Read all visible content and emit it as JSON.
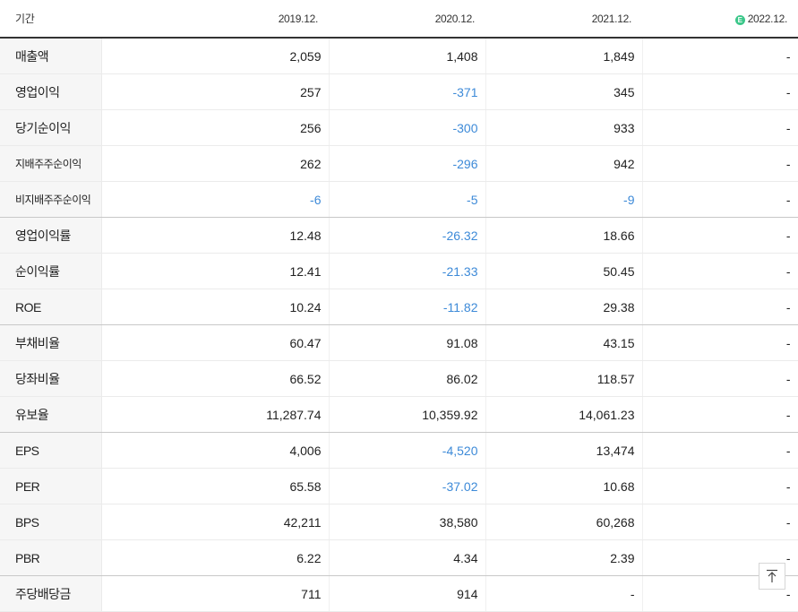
{
  "header": {
    "period_label": "기간",
    "columns": [
      "2019.12.",
      "2020.12.",
      "2021.12.",
      "2022.12."
    ],
    "estimate_icon": "E"
  },
  "rows": [
    {
      "label": "매출액",
      "values": [
        "2,059",
        "1,408",
        "1,849",
        "-"
      ]
    },
    {
      "label": "영업이익",
      "values": [
        "257",
        "-371",
        "345",
        "-"
      ]
    },
    {
      "label": "당기순이익",
      "values": [
        "256",
        "-300",
        "933",
        "-"
      ]
    },
    {
      "label": "지배주주순이익",
      "values": [
        "262",
        "-296",
        "942",
        "-"
      ]
    },
    {
      "label": "비지배주주순이익",
      "values": [
        "-6",
        "-5",
        "-9",
        "-"
      ]
    },
    {
      "label": "영업이익률",
      "values": [
        "12.48",
        "-26.32",
        "18.66",
        "-"
      ]
    },
    {
      "label": "순이익률",
      "values": [
        "12.41",
        "-21.33",
        "50.45",
        "-"
      ]
    },
    {
      "label": "ROE",
      "values": [
        "10.24",
        "-11.82",
        "29.38",
        "-"
      ]
    },
    {
      "label": "부채비율",
      "values": [
        "60.47",
        "91.08",
        "43.15",
        "-"
      ]
    },
    {
      "label": "당좌비율",
      "values": [
        "66.52",
        "86.02",
        "118.57",
        "-"
      ]
    },
    {
      "label": "유보율",
      "values": [
        "11,287.74",
        "10,359.92",
        "14,061.23",
        "-"
      ]
    },
    {
      "label": "EPS",
      "values": [
        "4,006",
        "-4,520",
        "13,474",
        "-"
      ]
    },
    {
      "label": "PER",
      "values": [
        "65.58",
        "-37.02",
        "10.68",
        "-"
      ]
    },
    {
      "label": "BPS",
      "values": [
        "42,211",
        "38,580",
        "60,268",
        "-"
      ]
    },
    {
      "label": "PBR",
      "values": [
        "6.22",
        "4.34",
        "2.39",
        "-"
      ]
    },
    {
      "label": "주당배당금",
      "values": [
        "711",
        "914",
        "-",
        "-"
      ]
    }
  ],
  "colors": {
    "negative": "#3d8ad8",
    "estimate_badge": "#3cc78a"
  },
  "scroll_top_icon": "arrow-up-to-top-icon"
}
